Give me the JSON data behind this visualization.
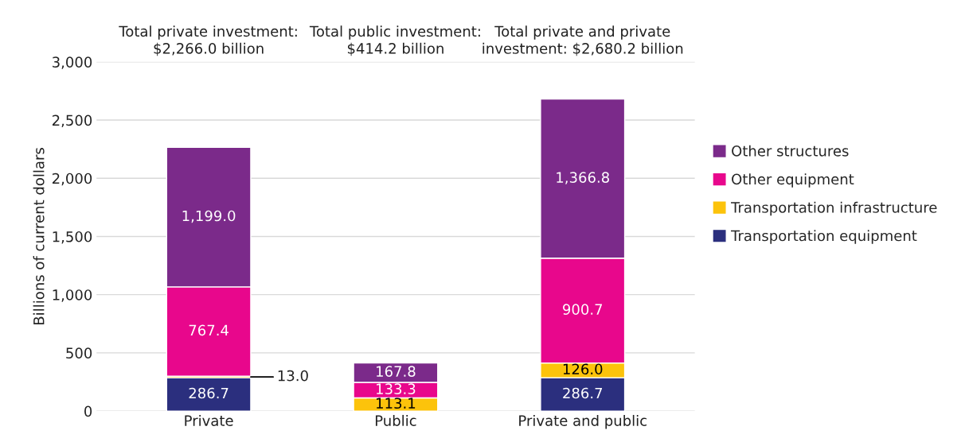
{
  "chart_data": {
    "type": "bar",
    "stacked": true,
    "ylabel": "Billions of current dollars",
    "categories": [
      "Private",
      "Public",
      "Private and public"
    ],
    "series": [
      {
        "name": "Transportation equipment",
        "color": "#2b2f7e",
        "values": [
          286.7,
          0,
          286.7
        ],
        "value_labels": [
          "286.7",
          null,
          "286.7"
        ]
      },
      {
        "name": "Transportation infrastructure",
        "color": "#fcc30b",
        "values": [
          13.0,
          113.1,
          126.0
        ],
        "value_labels": [
          "13.0",
          "113.1",
          "126.0"
        ]
      },
      {
        "name": "Other equipment",
        "color": "#e8078c",
        "values": [
          767.4,
          133.3,
          900.7
        ],
        "value_labels": [
          "767.4",
          "133.3",
          "900.7"
        ]
      },
      {
        "name": "Other structures",
        "color": "#7b2a8a",
        "values": [
          1199.0,
          167.8,
          1366.8
        ],
        "value_labels": [
          "1,199.0",
          "167.8",
          "1,366.8"
        ]
      }
    ],
    "ylim": [
      0,
      3000
    ],
    "yticks": [
      0,
      {
        "value": 500,
        "label": "500"
      },
      {
        "value": 1000,
        "label": "1,000"
      },
      {
        "value": 1500,
        "label": "1,500"
      },
      {
        "value": 2000,
        "label": "2,000"
      },
      {
        "value": 2500,
        "label": "2,500"
      },
      {
        "value": 3000,
        "label": "3,000"
      }
    ],
    "grid": "y",
    "legend": "right",
    "annotations": [
      "Total private investment:\n$2,266.0 billion",
      "Total public investment:\n$414.2 billion",
      "Total private and private\ninvestment: $2,680.2 billion"
    ]
  }
}
